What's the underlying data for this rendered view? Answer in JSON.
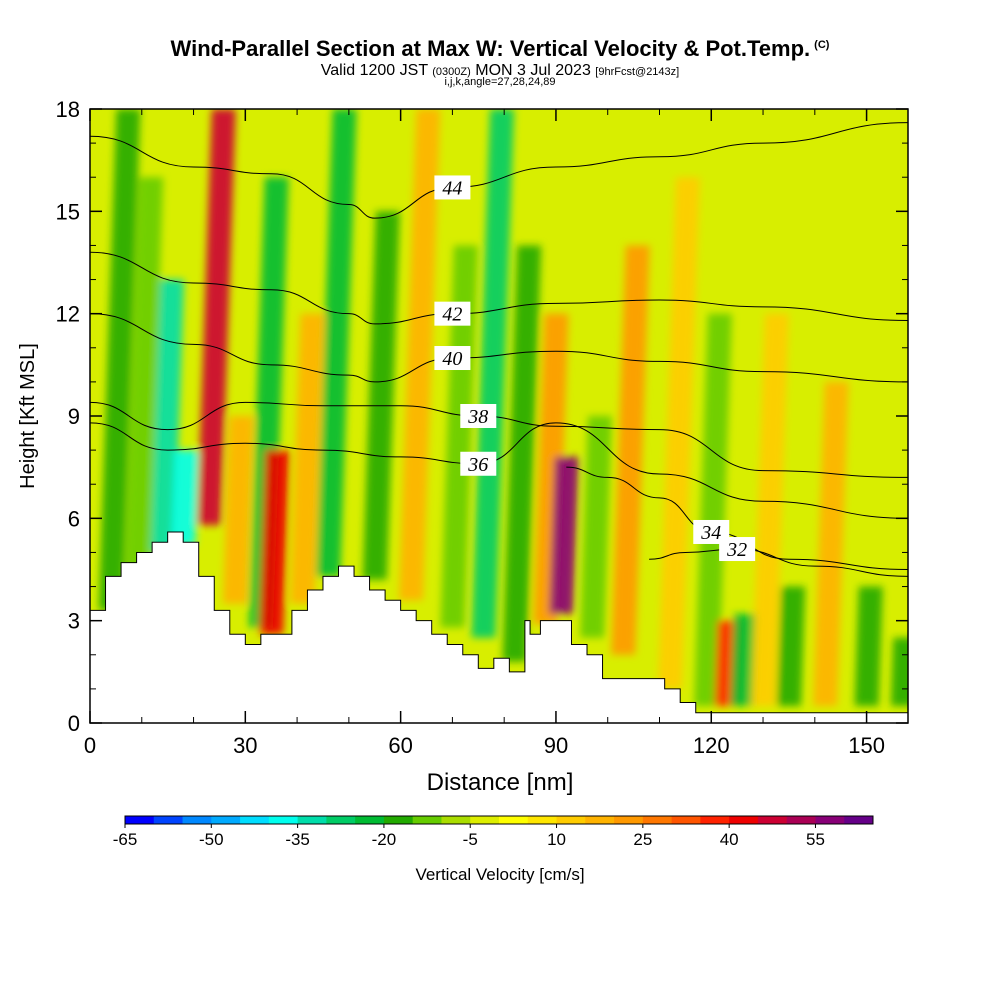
{
  "title": {
    "main": "Wind-Parallel Section at Max W: Vertical Velocity & Pot.Temp.",
    "main_suffix": "(C)",
    "valid_prefix": "Valid 1200 JST",
    "valid_zulu": "(0300Z)",
    "valid_date": "MON 3 Jul 2023",
    "forecast_info": "[9hrFcst@2143z]",
    "indices": "i,j,k,angle=27,28,24,89"
  },
  "chart_data": {
    "type": "heatmap",
    "xlabel": "Distance [nm]",
    "ylabel": "Height [Kft MSL]",
    "xlim": [
      0,
      158
    ],
    "ylim": [
      0,
      18
    ],
    "x_ticks": [
      0,
      30,
      60,
      90,
      120,
      150
    ],
    "y_ticks": [
      0,
      3,
      6,
      9,
      12,
      15,
      18
    ],
    "grid": false,
    "field": "Vertical Velocity",
    "contour_field": "Potential Temperature (C)",
    "colorbar": {
      "label": "Vertical Velocity [cm/s]",
      "min": -65,
      "step": 5,
      "tick_labels": [
        "-65",
        "-50",
        "-35",
        "-20",
        "-5",
        "10",
        "25",
        "40",
        "55"
      ],
      "colors": [
        "#0000ff",
        "#0044ff",
        "#0088ff",
        "#00aaff",
        "#00ddff",
        "#00ffee",
        "#00ddaa",
        "#00cc66",
        "#00bb33",
        "#22aa00",
        "#66cc00",
        "#aadd00",
        "#ddee00",
        "#ffff00",
        "#ffe600",
        "#ffcc00",
        "#ffb300",
        "#ff9900",
        "#ff7700",
        "#ff5500",
        "#ff2200",
        "#ee0000",
        "#cc0033",
        "#aa0055",
        "#880077",
        "#660088"
      ]
    },
    "vertical_velocity_cells": [
      {
        "x": 4,
        "ztop": 18,
        "ybase": 3.3,
        "w": -20
      },
      {
        "x": 9,
        "ztop": 16,
        "ybase": 3.8,
        "w": -12
      },
      {
        "x": 14,
        "ztop": 13,
        "ybase": 5.0,
        "w": -35
      },
      {
        "x": 18,
        "ztop": 8,
        "ybase": 5.2,
        "w": -38
      },
      {
        "x": 23,
        "ztop": 18,
        "ybase": 5.8,
        "w": 45
      },
      {
        "x": 28,
        "ztop": 9,
        "ybase": 3.5,
        "w": 15
      },
      {
        "x": 33,
        "ztop": 16,
        "ybase": 2.8,
        "w": -25
      },
      {
        "x": 35,
        "ztop": 8,
        "ybase": 2.6,
        "w": 40
      },
      {
        "x": 41,
        "ztop": 12,
        "ybase": 3.5,
        "w": 15
      },
      {
        "x": 46,
        "ztop": 18,
        "ybase": 4.3,
        "w": -25
      },
      {
        "x": 55,
        "ztop": 15,
        "ybase": 4.2,
        "w": -20
      },
      {
        "x": 62,
        "ztop": 18,
        "ybase": 3.6,
        "w": 15
      },
      {
        "x": 70,
        "ztop": 14,
        "ybase": 2.8,
        "w": -15
      },
      {
        "x": 76,
        "ztop": 18,
        "ybase": 2.5,
        "w": -28
      },
      {
        "x": 82,
        "ztop": 14,
        "ybase": 1.8,
        "w": -18
      },
      {
        "x": 88,
        "ztop": 12,
        "ybase": 2.9,
        "w": 20
      },
      {
        "x": 91,
        "ztop": 7.8,
        "ybase": 3.2,
        "w": 58
      },
      {
        "x": 97,
        "ztop": 9,
        "ybase": 2.5,
        "w": -15
      },
      {
        "x": 103,
        "ztop": 14,
        "ybase": 2.0,
        "w": 20
      },
      {
        "x": 112,
        "ztop": 16,
        "ybase": 1.0,
        "w": 10
      },
      {
        "x": 119,
        "ztop": 12,
        "ybase": 0.5,
        "w": -12
      },
      {
        "x": 123,
        "ztop": 3.0,
        "ybase": 0.5,
        "w": 35
      },
      {
        "x": 126,
        "ztop": 3.2,
        "ybase": 0.5,
        "w": -25
      },
      {
        "x": 130,
        "ztop": 12,
        "ybase": 0.5,
        "w": 10
      },
      {
        "x": 135,
        "ztop": 4,
        "ybase": 0.5,
        "w": -20
      },
      {
        "x": 142,
        "ztop": 10,
        "ybase": 0.5,
        "w": 15
      },
      {
        "x": 150,
        "ztop": 4,
        "ybase": 0.5,
        "w": -18
      },
      {
        "x": 157,
        "ztop": 2.5,
        "ybase": 0.5,
        "w": -20
      }
    ],
    "terrain": {
      "x": [
        0,
        3,
        3,
        6,
        6,
        9,
        9,
        12,
        12,
        15,
        15,
        18,
        18,
        21,
        21,
        24,
        24,
        27,
        27,
        30,
        30,
        33,
        33,
        39,
        39,
        42,
        42,
        45,
        45,
        48,
        48,
        51,
        51,
        54,
        54,
        57,
        57,
        60,
        60,
        63,
        63,
        66,
        66,
        69,
        69,
        72,
        72,
        75,
        75,
        78,
        78,
        81,
        81,
        84,
        84,
        85,
        85,
        87,
        87,
        93,
        93,
        96,
        96,
        99,
        99,
        111,
        111,
        114,
        114,
        117,
        117,
        120,
        120,
        158
      ],
      "y": [
        3.3,
        3.3,
        4.3,
        4.3,
        4.7,
        4.7,
        5.0,
        5.0,
        5.3,
        5.3,
        5.6,
        5.6,
        5.3,
        5.3,
        4.3,
        4.3,
        3.3,
        3.3,
        2.6,
        2.6,
        2.3,
        2.3,
        2.6,
        2.6,
        3.3,
        3.3,
        3.9,
        3.9,
        4.3,
        4.3,
        4.6,
        4.6,
        4.3,
        4.3,
        3.9,
        3.9,
        3.6,
        3.6,
        3.3,
        3.3,
        3.0,
        3.0,
        2.6,
        2.6,
        2.3,
        2.3,
        2.0,
        2.0,
        1.6,
        1.6,
        1.9,
        1.9,
        1.5,
        1.5,
        3.0,
        3.0,
        2.6,
        2.6,
        3.0,
        3.0,
        2.3,
        2.3,
        2.0,
        2.0,
        1.3,
        1.3,
        1.0,
        1.0,
        0.6,
        0.6,
        0.3,
        0.3,
        0.3,
        0.3
      ]
    },
    "potential_temperature_contours": [
      {
        "value": 44,
        "label": "44",
        "x": [
          0,
          20,
          35,
          50,
          55,
          70,
          90,
          110,
          130,
          158
        ],
        "y": [
          17.2,
          16.3,
          16.1,
          15.2,
          14.8,
          15.7,
          16.3,
          16.6,
          17.0,
          17.6
        ]
      },
      {
        "value": 42,
        "label": "42",
        "x": [
          0,
          20,
          35,
          50,
          55,
          70,
          90,
          110,
          130,
          158
        ],
        "y": [
          13.8,
          12.9,
          12.7,
          12.0,
          11.7,
          12.0,
          12.3,
          12.4,
          12.2,
          11.8
        ]
      },
      {
        "value": 40,
        "label": "40",
        "x": [
          0,
          20,
          35,
          50,
          55,
          70,
          90,
          110,
          130,
          158
        ],
        "y": [
          12.0,
          11.1,
          10.5,
          10.2,
          10.0,
          10.7,
          10.9,
          10.6,
          10.3,
          10.0
        ]
      },
      {
        "value": 38,
        "label": "38",
        "x": [
          0,
          15,
          30,
          45,
          60,
          75,
          90,
          110,
          130,
          158
        ],
        "y": [
          9.4,
          8.6,
          9.4,
          9.3,
          9.3,
          9.0,
          8.7,
          8.6,
          7.4,
          7.2
        ]
      },
      {
        "value": 36,
        "label": "36",
        "x": [
          0,
          15,
          30,
          45,
          60,
          75,
          90,
          110,
          130,
          158
        ],
        "y": [
          8.8,
          8.0,
          8.2,
          8.0,
          7.8,
          7.6,
          8.8,
          7.3,
          6.5,
          6.0
        ]
      },
      {
        "value": 34,
        "label": "34",
        "x": [
          92,
          100,
          110,
          120,
          135,
          158
        ],
        "y": [
          7.5,
          7.2,
          6.6,
          5.6,
          4.8,
          4.5
        ]
      },
      {
        "value": 32,
        "label": "32",
        "x": [
          108,
          115,
          125,
          140,
          158
        ],
        "y": [
          4.8,
          5.0,
          5.1,
          4.6,
          4.3
        ]
      }
    ]
  }
}
